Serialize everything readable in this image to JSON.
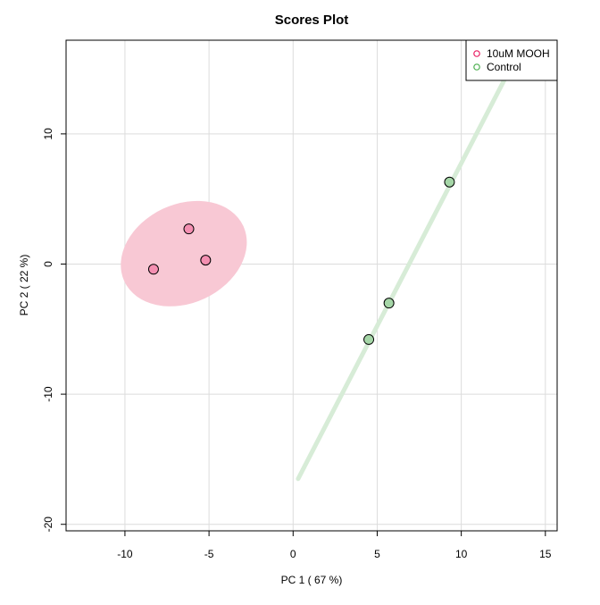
{
  "chart_data": {
    "type": "scatter",
    "title": "Scores Plot",
    "xlabel": "PC 1 ( 67 %)",
    "ylabel": "PC 2 ( 22 %)",
    "xlim": [
      -13.5,
      15.7
    ],
    "ylim": [
      -20.5,
      17.2
    ],
    "xticks": [
      -10,
      -5,
      0,
      5,
      10,
      15
    ],
    "yticks": [
      -20,
      -10,
      0,
      10
    ],
    "grid": true,
    "legend_position": "top-right",
    "series": [
      {
        "name": "10uM MOOH",
        "color": "#e91e63",
        "fill": "#f48fb1",
        "ellipse_fill": "#f8c8d4",
        "points": [
          {
            "x": -6.2,
            "y": 2.7
          },
          {
            "x": -5.2,
            "y": 0.3
          },
          {
            "x": -8.3,
            "y": -0.4
          }
        ],
        "ellipse": {
          "cx": -6.5,
          "cy": 0.8,
          "rx": 3.9,
          "ry": 3.8,
          "angle_deg": 25
        }
      },
      {
        "name": "Control",
        "color": "#4caf50",
        "fill": "#a5d6a7",
        "ellipse_fill": "#d7ecd7",
        "points": [
          {
            "x": 9.3,
            "y": 6.3
          },
          {
            "x": 5.7,
            "y": -3.0
          },
          {
            "x": 4.5,
            "y": -5.8
          }
        ],
        "band": {
          "x1": 0.3,
          "y1": -16.5,
          "x2": 12.7,
          "y2": 14.5
        }
      }
    ]
  }
}
